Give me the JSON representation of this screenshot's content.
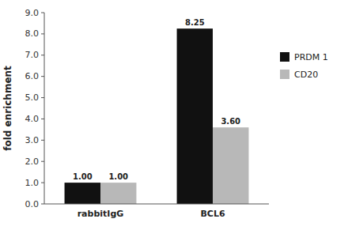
{
  "chart_data": {
    "type": "bar",
    "categories": [
      "rabbitIgG",
      "BCL6"
    ],
    "series": [
      {
        "name": "PRDM 1",
        "color": "#111111",
        "values": [
          1.0,
          8.25
        ],
        "value_labels": [
          "1.00",
          "8.25"
        ]
      },
      {
        "name": "CD20",
        "color": "#b8b8b8",
        "values": [
          1.0,
          3.6
        ],
        "value_labels": [
          "1.00",
          "3.60"
        ]
      }
    ],
    "ylabel": "fold enrichment",
    "ylim": [
      0,
      9.0
    ],
    "yticks": [
      {
        "value": 0.0,
        "label": "0.0"
      },
      {
        "value": 1.0,
        "label": "1.0"
      },
      {
        "value": 2.0,
        "label": "2.0"
      },
      {
        "value": 3.0,
        "label": "3.0"
      },
      {
        "value": 4.0,
        "label": "4.0"
      },
      {
        "value": 5.0,
        "label": "5.0"
      },
      {
        "value": 6.0,
        "label": "6.0"
      },
      {
        "value": 7.0,
        "label": "7.0"
      },
      {
        "value": 8.0,
        "label": "8.0"
      },
      {
        "value": 9.0,
        "label": "9.0"
      }
    ],
    "data_labels": true,
    "legend": "right",
    "grid": false
  }
}
